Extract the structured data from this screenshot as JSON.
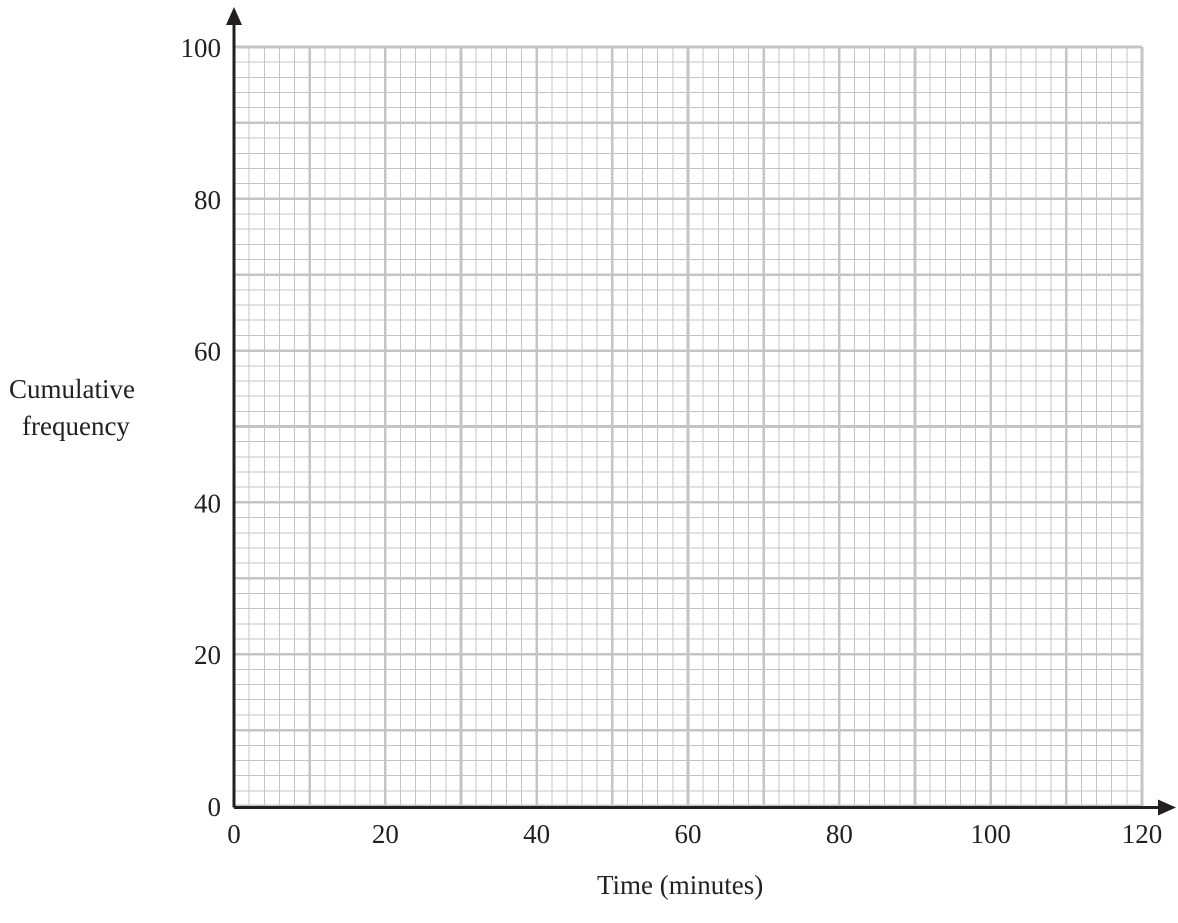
{
  "chart_data": {
    "type": "line",
    "title": "",
    "xlabel": "Time (minutes)",
    "ylabel_lines": [
      "Cumulative",
      "frequency"
    ],
    "xlim": [
      0,
      120
    ],
    "ylim": [
      0,
      100
    ],
    "x_ticks": [
      "0",
      "20",
      "40",
      "60",
      "80",
      "100",
      "120"
    ],
    "y_ticks": [
      "0",
      "20",
      "40",
      "60",
      "80",
      "100"
    ],
    "grid": true,
    "grid_minor_step": 2,
    "grid_major_step": 10,
    "series": [],
    "colors": {
      "grid": "#c4c4c4",
      "axis": "#231f20",
      "text": "#231f20"
    }
  }
}
